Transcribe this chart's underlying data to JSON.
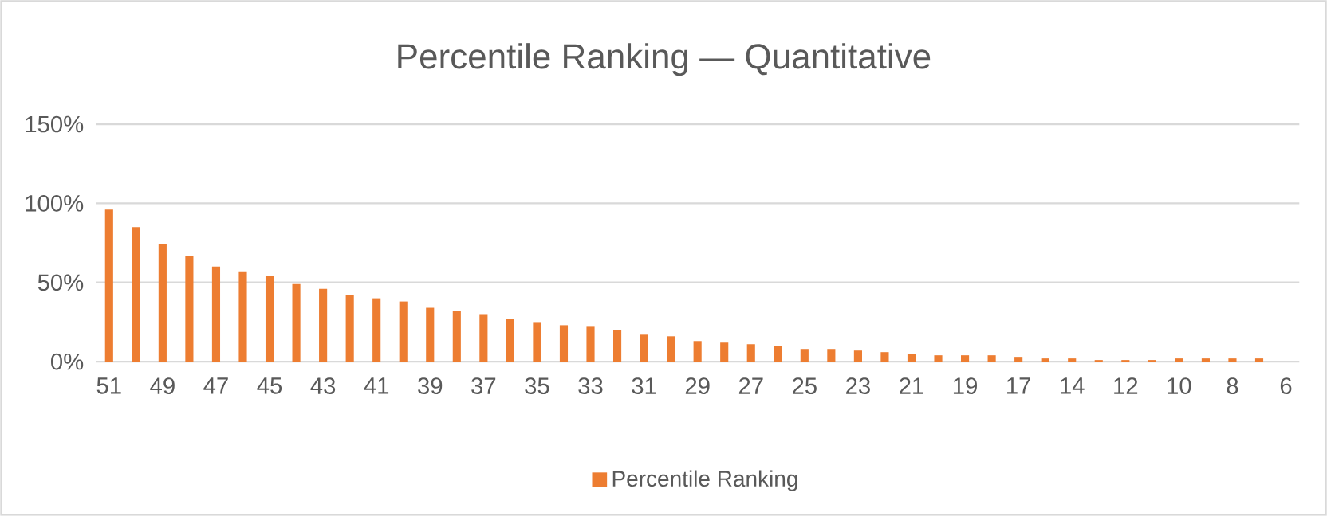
{
  "chart_data": {
    "type": "bar",
    "title": "Percentile Ranking — Quantitative",
    "categories": [
      "51",
      null,
      "49",
      null,
      "47",
      null,
      "45",
      null,
      "43",
      null,
      "41",
      null,
      "39",
      null,
      "37",
      null,
      "35",
      null,
      "33",
      null,
      "31",
      null,
      "29",
      null,
      "27",
      null,
      "25",
      null,
      "23",
      null,
      "21",
      null,
      "19",
      null,
      "17",
      null,
      "14",
      null,
      "12",
      null,
      "10",
      null,
      "8",
      null,
      "6"
    ],
    "series": [
      {
        "name": "Percentile Ranking",
        "color": "#ed7d31",
        "values": [
          96,
          85,
          74,
          67,
          60,
          57,
          54,
          49,
          46,
          42,
          40,
          38,
          34,
          32,
          30,
          27,
          25,
          23,
          22,
          20,
          17,
          16,
          13,
          12,
          11,
          10,
          8,
          8,
          7,
          6,
          5,
          4,
          4,
          4,
          3,
          2,
          2,
          1,
          1,
          1,
          2,
          2,
          2,
          2,
          0
        ]
      }
    ],
    "ylim": [
      0,
      150
    ],
    "yticks": [
      {
        "value": 0,
        "label": "0%"
      },
      {
        "value": 50,
        "label": "50%"
      },
      {
        "value": 100,
        "label": "100%"
      },
      {
        "value": 150,
        "label": "150%"
      }
    ],
    "grid": "y",
    "legend": "bottom"
  }
}
